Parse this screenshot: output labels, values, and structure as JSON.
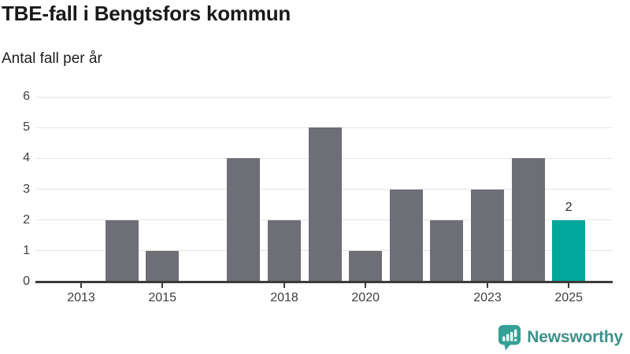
{
  "header": {
    "title": "TBE-fall i Bengtsfors kommun",
    "subtitle": "Antal fall per år"
  },
  "chart_data": {
    "type": "bar",
    "title": "TBE-fall i Bengtsfors kommun",
    "subtitle": "Antal fall per år",
    "categories": [
      "2013",
      "2014",
      "2015",
      "2016",
      "2017",
      "2018",
      "2019",
      "2020",
      "2021",
      "2022",
      "2023",
      "2024",
      "2025"
    ],
    "values": [
      0,
      2,
      1,
      0,
      4,
      2,
      5,
      1,
      3,
      2,
      3,
      4,
      2
    ],
    "ylim": [
      0,
      6
    ],
    "yticks": [
      0,
      1,
      2,
      3,
      4,
      5,
      6
    ],
    "xticks": [
      "2013",
      "2015",
      "2018",
      "2020",
      "2023",
      "2025"
    ],
    "grid": true,
    "legend_position": "none",
    "bar_color": "#6e6e76",
    "highlight_category": "2025",
    "highlight_color": "#00a79a",
    "highlight_value_label": "2"
  },
  "footer": {
    "brand": "Newsworthy",
    "brand_color": "#3d918b",
    "logo_icon": "newsworthy-speech-bubble-chart-icon",
    "logo_icon_color": "#35a096"
  }
}
